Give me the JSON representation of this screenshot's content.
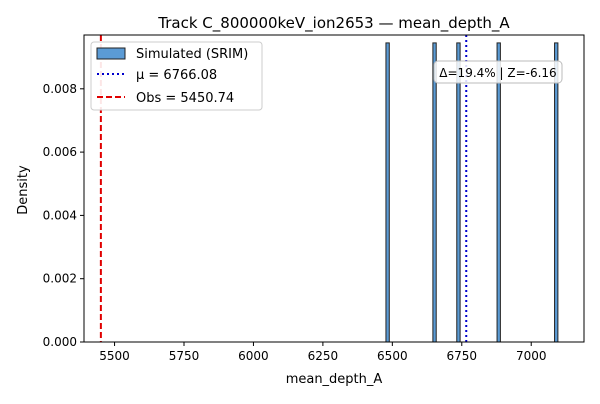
{
  "chart_data": {
    "type": "bar",
    "title": "Track C_800000keV_ion2653 — mean_depth_A",
    "xlabel": "mean_depth_A",
    "ylabel": "Density",
    "xlim": [
      5390,
      7190
    ],
    "ylim": [
      0,
      0.0097
    ],
    "x_ticks": [
      {
        "value": 5500,
        "label": "5500"
      },
      {
        "value": 5750,
        "label": "5750"
      },
      {
        "value": 6000,
        "label": "6000"
      },
      {
        "value": 6250,
        "label": "6250"
      },
      {
        "value": 6500,
        "label": "6500"
      },
      {
        "value": 6750,
        "label": "6750"
      },
      {
        "value": 7000,
        "label": "7000"
      }
    ],
    "y_ticks": [
      {
        "value": 0.0,
        "label": "0.000"
      },
      {
        "value": 0.002,
        "label": "0.002"
      },
      {
        "value": 0.004,
        "label": "0.004"
      },
      {
        "value": 0.006,
        "label": "0.006"
      },
      {
        "value": 0.008,
        "label": "0.008"
      }
    ],
    "series": [
      {
        "name": "Simulated (SRIM)",
        "color": "#5b9bd5",
        "bins": [
          {
            "x0": 6477,
            "x1": 6489,
            "density": 0.00945
          },
          {
            "x0": 6646,
            "x1": 6658,
            "density": 0.00945
          },
          {
            "x0": 6732,
            "x1": 6744,
            "density": 0.00945
          },
          {
            "x0": 6877,
            "x1": 6889,
            "density": 0.00945
          },
          {
            "x0": 7084,
            "x1": 7096,
            "density": 0.00945
          }
        ]
      }
    ],
    "lines": [
      {
        "name": "μ = 6766.08",
        "x": 6766.08,
        "color": "#0000cc",
        "style": "dotted"
      },
      {
        "name": "Obs = 5450.74",
        "x": 5450.74,
        "color": "#e00000",
        "style": "dashed"
      }
    ],
    "annotation": "Δ=19.4% | Z=-6.16",
    "legend_placement": "top-left",
    "grid": false
  }
}
